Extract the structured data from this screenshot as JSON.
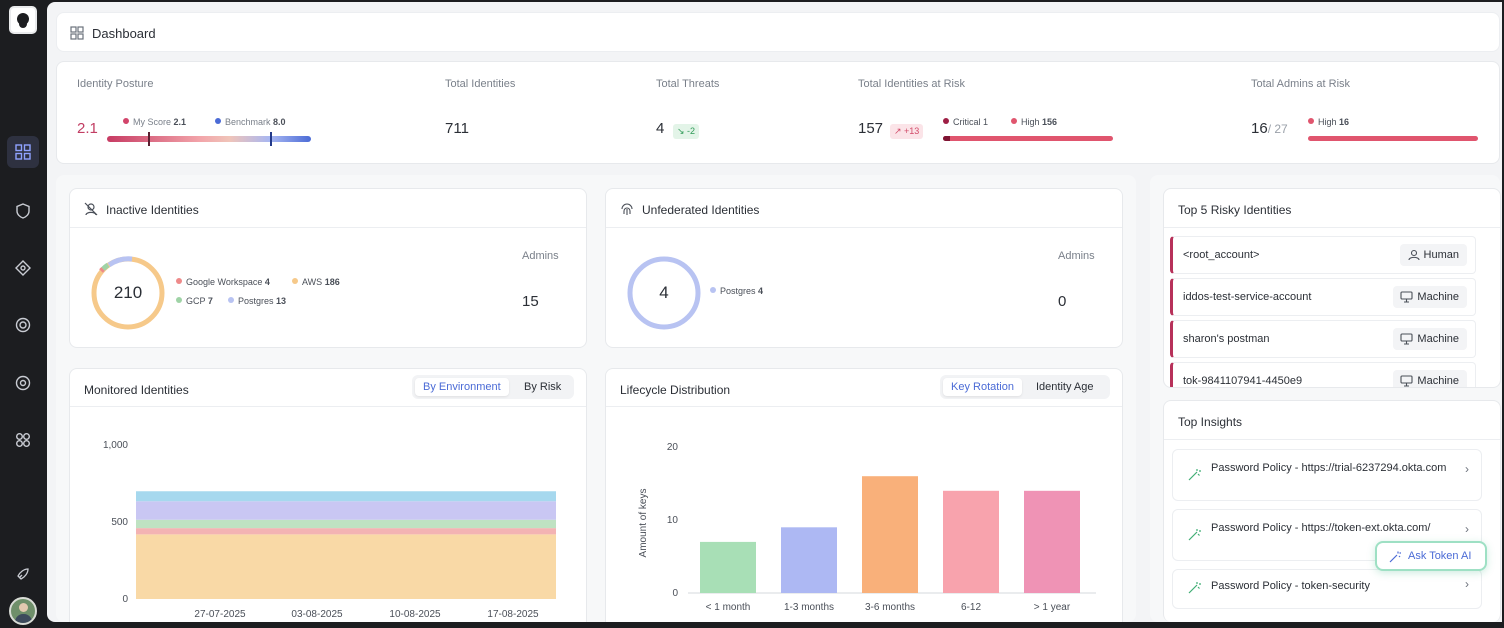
{
  "header": {
    "title": "Dashboard"
  },
  "sidebar": {
    "items": [
      {
        "name": "dashboard-icon"
      },
      {
        "name": "shield-icon"
      },
      {
        "name": "network-icon"
      },
      {
        "name": "target-icon"
      },
      {
        "name": "at-icon"
      },
      {
        "name": "integrations-icon"
      },
      {
        "name": "rocket-icon"
      }
    ]
  },
  "kpis": {
    "posture": {
      "label": "Identity Posture",
      "value": "2.1",
      "my_score_label": "My Score",
      "my_score": "2.1",
      "benchmark_label": "Benchmark",
      "benchmark": "8.0"
    },
    "identities": {
      "label": "Total Identities",
      "value": "711"
    },
    "threats": {
      "label": "Total Threats",
      "value": "4",
      "delta": "↘ -2"
    },
    "at_risk": {
      "label": "Total Identities at Risk",
      "value": "157",
      "delta": "↗ +13",
      "critical_label": "Critical",
      "critical": "1",
      "high_label": "High",
      "high": "156"
    },
    "admins": {
      "label": "Total Admins at Risk",
      "value": "16",
      "total": "/ 27",
      "high_label": "High",
      "high": "16"
    }
  },
  "inactive": {
    "title": "Inactive Identities",
    "total": "210",
    "legend": [
      {
        "label": "Google Workspace",
        "value": "4",
        "color": "#ee8a8a"
      },
      {
        "label": "AWS",
        "value": "186",
        "color": "#f6c98a"
      },
      {
        "label": "GCP",
        "value": "7",
        "color": "#9fd3a6"
      },
      {
        "label": "Postgres",
        "value": "13",
        "color": "#b8c3f2"
      }
    ],
    "admins_label": "Admins",
    "admins": "15"
  },
  "unfederated": {
    "title": "Unfederated Identities",
    "total": "4",
    "legend": [
      {
        "label": "Postgres",
        "value": "4",
        "color": "#b8c3f2"
      }
    ],
    "admins_label": "Admins",
    "admins": "0"
  },
  "monitored": {
    "title": "Monitored Identities",
    "tabs": [
      "By Environment",
      "By Risk"
    ],
    "yticks": [
      "1,000",
      "500",
      "0"
    ],
    "xticks": [
      "27-07-2025",
      "03-08-2025",
      "10-08-2025",
      "17-08-2025"
    ]
  },
  "lifecycle": {
    "title": "Lifecycle Distribution",
    "tabs": [
      "Key Rotation",
      "Identity Age"
    ]
  },
  "risky": {
    "title": "Top 5 Risky Identities",
    "items": [
      {
        "name": "<root_account>",
        "type": "Human"
      },
      {
        "name": "iddos-test-service-account",
        "type": "Machine"
      },
      {
        "name": "sharon's postman",
        "type": "Machine"
      },
      {
        "name": "tok-9841107941-4450e9",
        "type": "Machine"
      }
    ]
  },
  "insights": {
    "title": "Top Insights",
    "items": [
      {
        "text": "Password Policy - https://trial-6237294.okta.com"
      },
      {
        "text": "Password Policy - https://token-ext.okta.com/"
      },
      {
        "text": "Password Policy - token-security"
      }
    ],
    "ask_button": "Ask Token AI"
  },
  "chart_data": [
    {
      "type": "area",
      "title": "Monitored Identities",
      "x": [
        "27-07-2025",
        "03-08-2025",
        "10-08-2025",
        "17-08-2025"
      ],
      "ylim": [
        0,
        1000
      ],
      "stacked": true,
      "series": [
        {
          "values": [
            420,
            420,
            420,
            420
          ],
          "color": "#f9d9a6"
        },
        {
          "values": [
            40,
            40,
            40,
            40
          ],
          "color": "#f3b3b3"
        },
        {
          "values": [
            55,
            55,
            55,
            55
          ],
          "color": "#bfe2c2"
        },
        {
          "values": [
            120,
            120,
            120,
            120
          ],
          "color": "#c9c7f3"
        },
        {
          "values": [
            65,
            65,
            65,
            65
          ],
          "color": "#a6d8ee"
        }
      ]
    },
    {
      "type": "bar",
      "title": "Lifecycle Distribution",
      "categories": [
        "< 1 month",
        "1-3 months",
        "3-6 months",
        "6-12",
        "> 1 year"
      ],
      "values": [
        7,
        9,
        16,
        14,
        14
      ],
      "colors": [
        "#a8dfb6",
        "#adb8f3",
        "#f9b07a",
        "#f8a3ad",
        "#ef93b5"
      ],
      "ylabel": "Amount of keys",
      "ylim": [
        0,
        20
      ],
      "yticks": [
        0,
        10,
        20
      ]
    }
  ]
}
